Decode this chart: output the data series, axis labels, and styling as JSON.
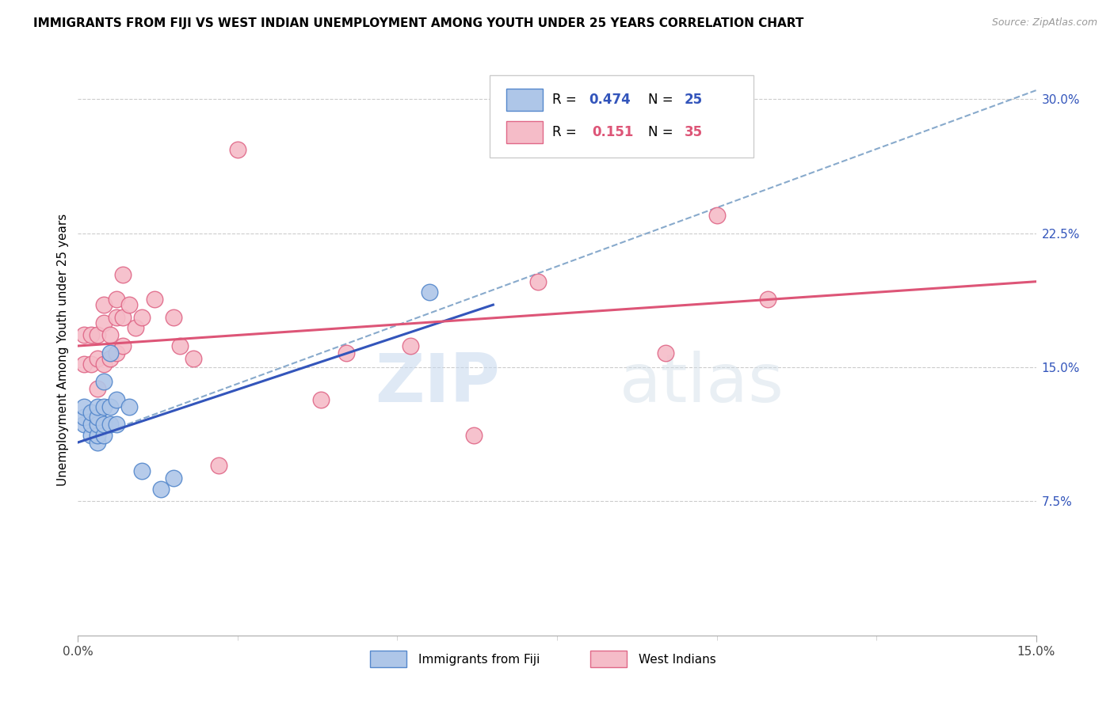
{
  "title": "IMMIGRANTS FROM FIJI VS WEST INDIAN UNEMPLOYMENT AMONG YOUTH UNDER 25 YEARS CORRELATION CHART",
  "source": "Source: ZipAtlas.com",
  "ylabel": "Unemployment Among Youth under 25 years",
  "xlim": [
    0.0,
    0.15
  ],
  "ylim": [
    0.0,
    0.32
  ],
  "ytick_right": [
    0.075,
    0.15,
    0.225,
    0.3
  ],
  "ytick_right_labels": [
    "7.5%",
    "15.0%",
    "22.5%",
    "30.0%"
  ],
  "bottom_legend1": "Immigrants from Fiji",
  "bottom_legend2": "West Indians",
  "watermark_zip": "ZIP",
  "watermark_atlas": "atlas",
  "fiji_color": "#aec6e8",
  "fiji_edge_color": "#5588cc",
  "west_color": "#f5bcc8",
  "west_edge_color": "#e06888",
  "fiji_line_color": "#3355bb",
  "west_line_color": "#dd5577",
  "dashed_line_color": "#88aacc",
  "R_fiji_str": "0.474",
  "N_fiji_str": "25",
  "R_west_str": "0.151",
  "N_west_str": "35",
  "legend_R_color": "#3355bb",
  "legend_N_color": "#3355bb",
  "legend_R2_color": "#dd5577",
  "legend_N2_color": "#dd5577",
  "fiji_scatter_x": [
    0.001,
    0.001,
    0.001,
    0.002,
    0.002,
    0.002,
    0.003,
    0.003,
    0.003,
    0.003,
    0.003,
    0.004,
    0.004,
    0.004,
    0.004,
    0.005,
    0.005,
    0.005,
    0.006,
    0.006,
    0.008,
    0.01,
    0.013,
    0.015,
    0.055
  ],
  "fiji_scatter_y": [
    0.118,
    0.122,
    0.128,
    0.112,
    0.118,
    0.125,
    0.108,
    0.112,
    0.118,
    0.122,
    0.128,
    0.112,
    0.118,
    0.128,
    0.142,
    0.118,
    0.128,
    0.158,
    0.118,
    0.132,
    0.128,
    0.092,
    0.082,
    0.088,
    0.192
  ],
  "west_scatter_x": [
    0.001,
    0.001,
    0.002,
    0.002,
    0.003,
    0.003,
    0.003,
    0.004,
    0.004,
    0.004,
    0.005,
    0.005,
    0.006,
    0.006,
    0.006,
    0.007,
    0.007,
    0.007,
    0.008,
    0.009,
    0.01,
    0.012,
    0.015,
    0.016,
    0.018,
    0.022,
    0.025,
    0.038,
    0.042,
    0.052,
    0.062,
    0.072,
    0.092,
    0.1,
    0.108
  ],
  "west_scatter_y": [
    0.152,
    0.168,
    0.152,
    0.168,
    0.138,
    0.155,
    0.168,
    0.152,
    0.175,
    0.185,
    0.155,
    0.168,
    0.158,
    0.178,
    0.188,
    0.162,
    0.178,
    0.202,
    0.185,
    0.172,
    0.178,
    0.188,
    0.178,
    0.162,
    0.155,
    0.095,
    0.272,
    0.132,
    0.158,
    0.162,
    0.112,
    0.198,
    0.158,
    0.235,
    0.188
  ],
  "fiji_line_x0": 0.0,
  "fiji_line_y0": 0.108,
  "fiji_line_x1": 0.065,
  "fiji_line_y1": 0.185,
  "west_line_x0": 0.0,
  "west_line_y0": 0.162,
  "west_line_x1": 0.15,
  "west_line_y1": 0.198,
  "dash_line_x0": 0.0,
  "dash_line_y0": 0.108,
  "dash_line_x1": 0.15,
  "dash_line_y1": 0.305
}
